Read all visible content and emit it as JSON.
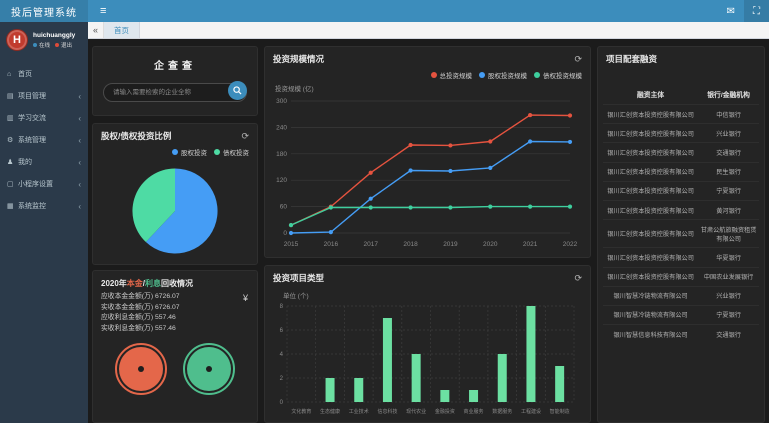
{
  "navbar": {
    "brand": "投后管理系统",
    "hamburger": "≡",
    "envelope_glyph": "✉",
    "fullscreen_glyph": "⛶"
  },
  "user": {
    "name": "huichuanggly",
    "online_label": "在线",
    "logout_label": "退出",
    "logo_letter": "H"
  },
  "sidebar": {
    "chevron": "‹",
    "items": [
      {
        "label": "首页",
        "icon": "home-icon",
        "glyph": "⌂",
        "has_children": false
      },
      {
        "label": "项目管理",
        "icon": "projects-icon",
        "glyph": "▤",
        "has_children": true
      },
      {
        "label": "学习交流",
        "icon": "learning-icon",
        "glyph": "▥",
        "has_children": true
      },
      {
        "label": "系统管理",
        "icon": "gear-icon",
        "glyph": "⚙",
        "has_children": true
      },
      {
        "label": "我的",
        "icon": "user-icon",
        "glyph": "♟",
        "has_children": true
      },
      {
        "label": "小程序设置",
        "icon": "miniapp-icon",
        "glyph": "▢",
        "has_children": true
      },
      {
        "label": "系统监控",
        "icon": "monitor-icon",
        "glyph": "▦",
        "has_children": true
      }
    ]
  },
  "tabbar": {
    "collapse_icon": "«",
    "active_tab": "首页"
  },
  "search_panel": {
    "title": "企查查",
    "placeholder": "请输入需要检索的企业全称"
  },
  "pie_panel": {
    "title": "股权/债权投资比例",
    "refresh_icon": "⟳"
  },
  "recovery_panel": {
    "title_prefix": "2020年",
    "title_principal": "本金",
    "title_slash": "/",
    "title_interest": "利息",
    "title_suffix": "回收情况",
    "yen_icon": "¥",
    "rows": [
      {
        "label": "应收本金金额(万)",
        "value": "6726.07"
      },
      {
        "label": "实收本金金额(万)",
        "value": "6726.07"
      },
      {
        "label": "应收利息金额(万)",
        "value": "557.46"
      },
      {
        "label": "实收利息金额(万)",
        "value": "557.46"
      }
    ],
    "gauges": [
      {
        "name": "principal-gauge",
        "color": "#e4674a"
      },
      {
        "name": "interest-gauge",
        "color": "#4fbe8d"
      }
    ]
  },
  "scale_panel": {
    "title": "投资规模情况",
    "refresh_icon": "⟳",
    "ylabel": "投资规模 (亿)"
  },
  "types_panel": {
    "title": "投资项目类型",
    "refresh_icon": "⟳",
    "ylabel": "单位 (个)"
  },
  "financing_panel": {
    "title": "项目配套融资",
    "headers": [
      "融资主体",
      "银行/金融机构"
    ],
    "rows": [
      [
        "银川汇创资本投资控股有限公司",
        "中信银行"
      ],
      [
        "银川汇创资本投资控股有限公司",
        "兴业银行"
      ],
      [
        "银川汇创资本投资控股有限公司",
        "交通银行"
      ],
      [
        "银川汇创资本投资控股有限公司",
        "民生银行"
      ],
      [
        "银川汇创资本投资控股有限公司",
        "宁夏银行"
      ],
      [
        "银川汇创资本投资控股有限公司",
        "黄河银行"
      ],
      [
        "银川汇创资本投资控股有限公司",
        "甘肃公航旅融资租赁有限公司"
      ],
      [
        "银川汇创资本投资控股有限公司",
        "华夏银行"
      ],
      [
        "银川汇创资本投资控股有限公司",
        "中国农业发展银行"
      ],
      [
        "银川智慧冷链物流有限公司",
        "兴业银行"
      ],
      [
        "银川智慧冷链物流有限公司",
        "宁夏银行"
      ],
      [
        "银川智慧信息科技有限公司",
        "交通银行"
      ]
    ]
  },
  "chart_data": [
    {
      "type": "pie",
      "title": "股权/债权投资比例",
      "labels": [
        "股权投资",
        "债权投资"
      ],
      "values": [
        62,
        38
      ],
      "colors": [
        "#459df5",
        "#4edba4"
      ],
      "legend_position": "top-right"
    },
    {
      "type": "line",
      "title": "投资规模情况",
      "ylabel": "投资规模 (亿)",
      "x": [
        2015,
        2016,
        2017,
        2018,
        2019,
        2020,
        2021,
        2022
      ],
      "ylim": [
        0,
        300
      ],
      "yticks": [
        0,
        60,
        120,
        180,
        240,
        300
      ],
      "grid": true,
      "legend_position": "top-right",
      "series": [
        {
          "name": "总投资规模",
          "color": "#e5533f",
          "values": [
            18,
            60,
            137,
            200,
            199,
            208,
            268,
            267
          ]
        },
        {
          "name": "股权投资规模",
          "color": "#459df5",
          "values": [
            0,
            2,
            78,
            142,
            141,
            148,
            208,
            207
          ]
        },
        {
          "name": "债权投资规模",
          "color": "#3ecf9e",
          "values": [
            18,
            58,
            58,
            58,
            58,
            60,
            60,
            60
          ]
        }
      ]
    },
    {
      "type": "bar",
      "title": "投资项目类型",
      "ylabel": "单位 (个)",
      "categories": [
        "文化教育",
        "生态健康",
        "工业技术",
        "信息科技",
        "现代农业",
        "金融投资",
        "商业服务",
        "数据服务",
        "工程建设",
        "智能制造"
      ],
      "values": [
        0,
        2,
        2,
        7,
        4,
        1,
        1,
        4,
        8,
        3
      ],
      "ylim": [
        0,
        8
      ],
      "yticks": [
        0,
        2,
        4,
        6,
        8
      ],
      "bar_color": "#6ce0a2",
      "grid": "dashed"
    }
  ]
}
